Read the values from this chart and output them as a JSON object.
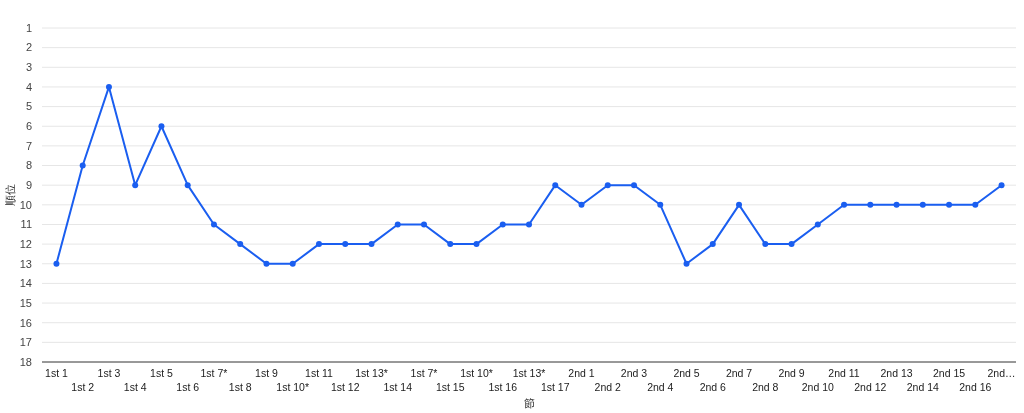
{
  "chart_data": {
    "type": "line",
    "xlabel": "節",
    "ylabel": "順位",
    "categories": [
      "1st 1",
      "1st 2",
      "1st 3",
      "1st 4",
      "1st 5",
      "1st 6",
      "1st 7*",
      "1st 8",
      "1st 9",
      "1st 10*",
      "1st 11",
      "1st 12",
      "1st 13*",
      "1st 14",
      "1st 7*",
      "1st 15",
      "1st 10*",
      "1st 16",
      "1st 13*",
      "1st 17",
      "2nd 1",
      "2nd 2",
      "2nd 3",
      "2nd 4",
      "2nd 5",
      "2nd 6",
      "2nd 7",
      "2nd 8",
      "2nd 9",
      "2nd 10",
      "2nd 11",
      "2nd 12",
      "2nd 13",
      "2nd 14",
      "2nd 15",
      "2nd 16",
      "2nd…"
    ],
    "series": [
      {
        "color": "#1a5ef0",
        "values": [
          13,
          8,
          4,
          9,
          6,
          9,
          11,
          12,
          13,
          13,
          12,
          12,
          12,
          11,
          11,
          12,
          12,
          11,
          11,
          9,
          10,
          9,
          9,
          10,
          13,
          12,
          10,
          12,
          12,
          11,
          10,
          10,
          10,
          10,
          10,
          10,
          9
        ]
      }
    ],
    "ylim": [
      18,
      1
    ],
    "yticks": [
      1,
      2,
      3,
      4,
      5,
      6,
      7,
      8,
      9,
      10,
      11,
      12,
      13,
      14,
      15,
      16,
      17,
      18
    ],
    "grid": "y",
    "marker": "circle",
    "line_style": "solid"
  }
}
